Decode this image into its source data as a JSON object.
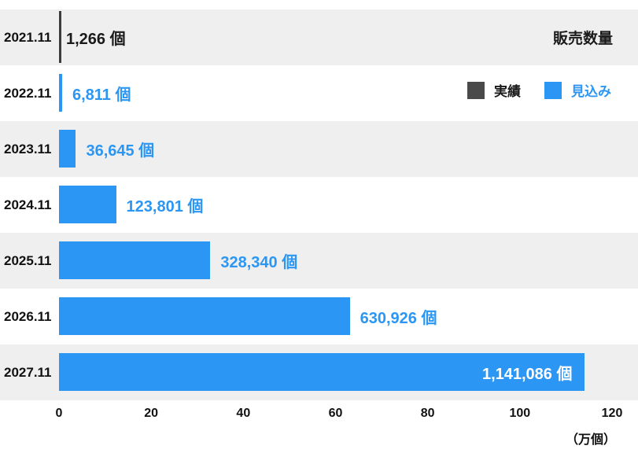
{
  "title": "販売数量",
  "legend": {
    "items": [
      {
        "label": "実績",
        "color": "#4a4a4a",
        "text_color": "#1a1a1a"
      },
      {
        "label": "見込み",
        "color": "#2b96f3",
        "text_color": "#2b96f3"
      }
    ]
  },
  "colors": {
    "accent_blue": "#2b96f3",
    "actual_gray": "#3c3c3c",
    "band_gray": "#efefef",
    "text_dark": "#1a1a1a",
    "label_inside_white": "#ffffff"
  },
  "chart_data": {
    "type": "bar",
    "orientation": "horizontal",
    "title": "販売数量",
    "categories": [
      "2021.11",
      "2022.11",
      "2023.11",
      "2024.11",
      "2025.11",
      "2026.11",
      "2027.11"
    ],
    "values": [
      1266,
      6811,
      36645,
      123801,
      328340,
      630926,
      1141086
    ],
    "value_labels": [
      "1,266 個",
      "6,811 個",
      "36,645 個",
      "123,801 個",
      "328,340 個",
      "630,926 個",
      "1,141,086 個"
    ],
    "series_names": [
      "実績",
      "見込み"
    ],
    "series_index": [
      0,
      1,
      1,
      1,
      1,
      1,
      1
    ],
    "x_ticks": [
      0,
      20,
      40,
      60,
      80,
      100,
      120
    ],
    "xlim": [
      0,
      120
    ],
    "x_axis_unit": "（万個）",
    "x_unit_scale": 10000,
    "legend_position": "top-right",
    "grid": false,
    "row_banding": "alternate-gray"
  }
}
